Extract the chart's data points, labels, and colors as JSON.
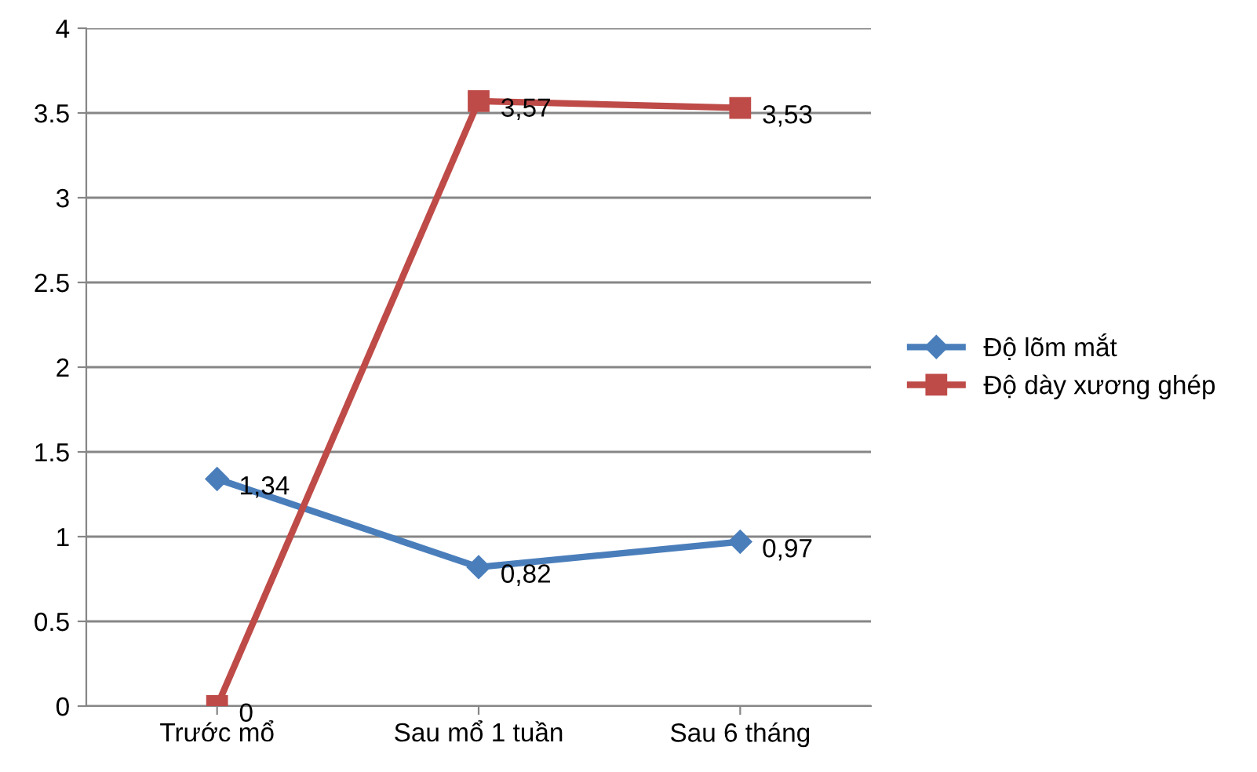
{
  "chart_data": {
    "type": "line",
    "categories": [
      "Trước mổ",
      "Sau mổ 1 tuần",
      "Sau 6 tháng"
    ],
    "series": [
      {
        "name": "Độ lõm mắt",
        "color": "#4a7ebb",
        "marker": "diamond",
        "values": [
          1.34,
          0.82,
          0.97
        ],
        "value_labels": [
          "1,34",
          "0,82",
          "0,97"
        ]
      },
      {
        "name": "Độ dày xương ghép",
        "color": "#be4b48",
        "marker": "square",
        "values": [
          0,
          3.57,
          3.53
        ],
        "value_labels": [
          "0",
          "3,57",
          "3,53"
        ]
      }
    ],
    "ylim": [
      0,
      4
    ],
    "yticks": [
      0,
      0.5,
      1,
      1.5,
      2,
      2.5,
      3,
      3.5,
      4
    ],
    "grid": "y",
    "legend": "right",
    "line_style": "solid"
  }
}
